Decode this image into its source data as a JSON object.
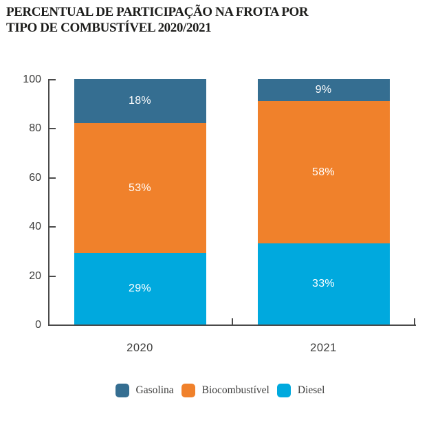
{
  "title": {
    "line1": "PERCENTUAL DE PARTICIPAÇÃO NA FROTA POR",
    "line2": "TIPO DE COMBUSTÍVEL 2020/2021"
  },
  "chart_data": {
    "type": "bar",
    "stacked": true,
    "title": "PERCENTUAL DE PARTICIPAÇÃO NA FROTA POR TIPO DE COMBUSTÍVEL 2020/2021",
    "categories": [
      "2020",
      "2021"
    ],
    "series": [
      {
        "key": "diesel",
        "name": "Diesel",
        "color": "#00a9de",
        "values": [
          29,
          33
        ],
        "labels": [
          "29%",
          "33%"
        ]
      },
      {
        "key": "biocombustivel",
        "name": "Biocombustível",
        "color": "#f0812b",
        "values": [
          53,
          58
        ],
        "labels": [
          "53%",
          "58%"
        ]
      },
      {
        "key": "gasolina",
        "name": "Gasolina",
        "color": "#356e91",
        "values": [
          18,
          9
        ],
        "labels": [
          "18%",
          "9%"
        ]
      }
    ],
    "stack_order_bottom_to_top": [
      "Diesel",
      "Biocombustível",
      "Gasolina"
    ],
    "legend": [
      {
        "key": "gasolina",
        "label": "Gasolina",
        "color": "#356e91"
      },
      {
        "key": "biocombustivel",
        "label": "Biocombustível",
        "color": "#f0812b"
      },
      {
        "key": "diesel",
        "label": "Diesel",
        "color": "#00a9de"
      }
    ],
    "legend_position": "bottom",
    "xlabel": "",
    "ylabel": "",
    "ylim": [
      0,
      100
    ],
    "yticks": [
      0,
      20,
      40,
      60,
      80,
      100
    ],
    "grid": false,
    "data_label_color": "#ffffff",
    "axis_color": "#4a4a4a",
    "tick_text_color": "#3c3c3b"
  }
}
